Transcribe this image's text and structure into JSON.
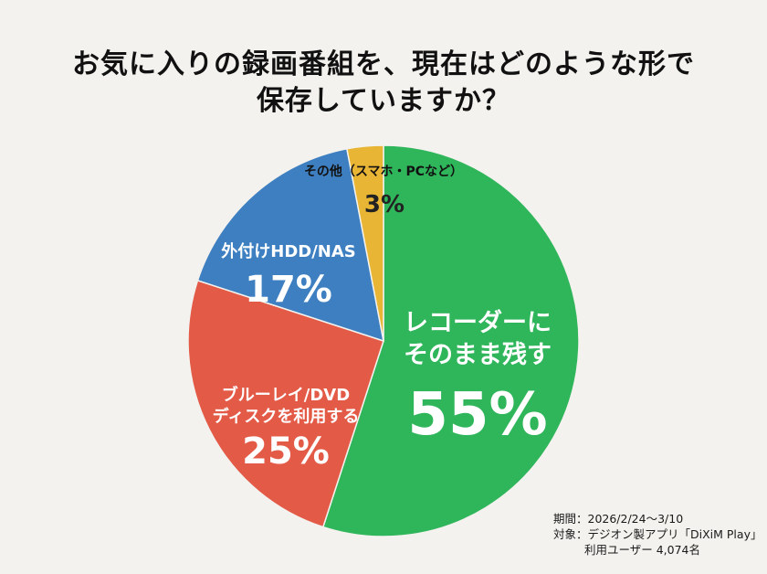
{
  "title": {
    "line1": "お気に入りの録画番組を、現在はどのような形で",
    "line2": "保存していますか？"
  },
  "footnote": {
    "period": "期間：2026/2/24〜3/10",
    "target": "対象：デジオン製アプリ「DiXiM Play」",
    "users": "利用ユーザー 4,074名"
  },
  "chart_data": {
    "type": "pie",
    "start": "12 o'clock",
    "direction": "clockwise",
    "slices": [
      {
        "label": "レコーダーにそのまま残す",
        "label_lines": [
          "レコーダーに",
          "そのまま残す"
        ],
        "value": 55,
        "display": "55%",
        "color": "#2fb55a"
      },
      {
        "label": "ブルーレイ/DVDディスクを利用する",
        "label_lines": [
          "ブルーレイ/DVD",
          "ディスクを利用する"
        ],
        "value": 25,
        "display": "25%",
        "color": "#e35a47"
      },
      {
        "label": "外付けHDD/NAS",
        "label_lines": [
          "外付けHDD/NAS"
        ],
        "value": 17,
        "display": "17%",
        "color": "#3d7fc0"
      },
      {
        "label": "その他（スマホ・PCなど）",
        "label_lines": [
          "その他（スマホ・PCなど）"
        ],
        "value": 3,
        "display": "3%",
        "color": "#e8b535"
      }
    ]
  }
}
